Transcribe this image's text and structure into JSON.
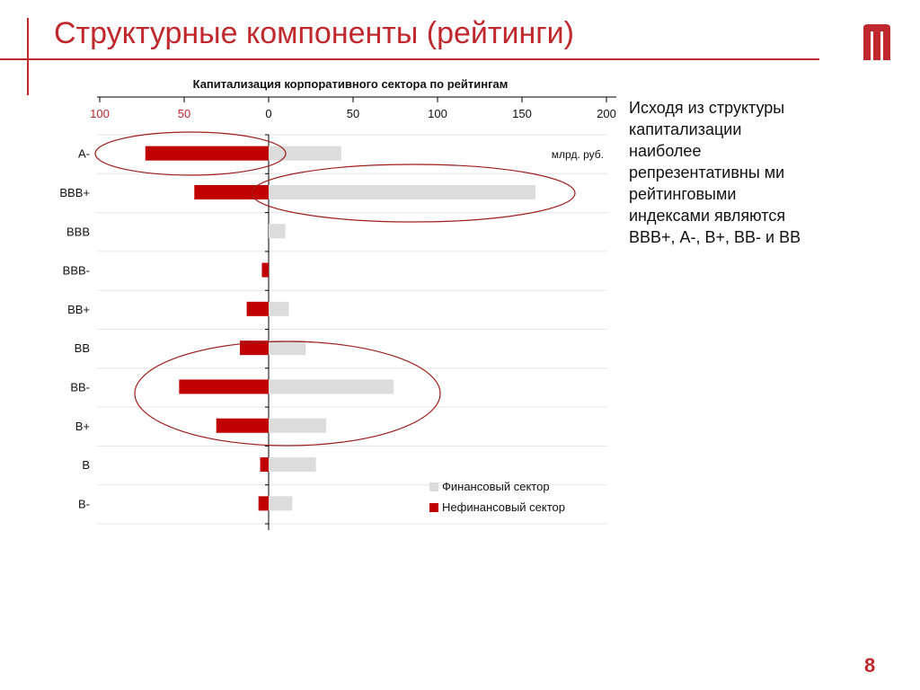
{
  "header": {
    "title": "Структурные компоненты (рейтинги)"
  },
  "logo": {
    "name": "brand-m-logo",
    "color": "#c0282d"
  },
  "side_text": "Исходя из структуры капитализации наиболее репрезентативны ми рейтинговыми индексами являются ВВВ+, А-, В+, ВВ- и ВВ",
  "page_number": "8",
  "colors": {
    "accent": "#c0282d",
    "financial": "#dcdcdc",
    "nonfinancial": "#c00000",
    "ellipse": "#a01e1e"
  },
  "chart_data": {
    "type": "bar",
    "orientation": "horizontal-diverging",
    "title": "Капитализация корпоративного сектора по рейтингам",
    "unit_label": "млрд. руб.",
    "categories": [
      "А-",
      "ВВВ+",
      "ВВВ",
      "ВВВ-",
      "ВВ+",
      "ВВ",
      "ВВ-",
      "В+",
      "В",
      "В-"
    ],
    "series": [
      {
        "name": "Финансовый сектор",
        "values": [
          43,
          158,
          10,
          0,
          12,
          22,
          74,
          34,
          28,
          14
        ]
      },
      {
        "name": "Нефинансовый сектор",
        "values": [
          73,
          44,
          0,
          4,
          13,
          17,
          53,
          31,
          5,
          6
        ]
      }
    ],
    "xlim": [
      -100,
      200
    ],
    "ticks": [
      -100,
      -50,
      0,
      50,
      100,
      150,
      200
    ],
    "tick_labels": [
      "100",
      "50",
      "0",
      "50",
      "100",
      "150",
      "200"
    ],
    "legend": "bottom-right",
    "highlighted": [
      [
        "А-"
      ],
      [
        "ВВВ+"
      ],
      [
        "ВВ",
        "ВВ-",
        "В+"
      ]
    ]
  }
}
